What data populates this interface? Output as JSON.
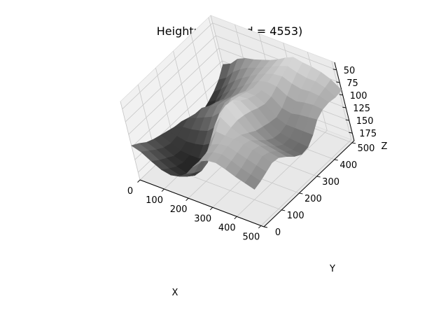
{
  "chart_data": {
    "type": "surface3d",
    "title": "Heightmap (seed = 4553)",
    "xlabel": "X",
    "ylabel": "Y",
    "zlabel": "Z",
    "xlim": [
      0,
      512
    ],
    "ylim": [
      0,
      512
    ],
    "zlim": [
      190,
      35
    ],
    "x_ticks": [
      "0",
      "100",
      "200",
      "300",
      "400",
      "500"
    ],
    "y_ticks": [
      "0",
      "100",
      "200",
      "300",
      "400",
      "500"
    ],
    "z_ticks": [
      "50",
      "75",
      "100",
      "125",
      "150",
      "175"
    ],
    "z_inverted": true,
    "grid": true,
    "colormap": "gray",
    "surface_grid": [
      [
        122,
        130,
        140,
        146,
        150,
        154,
        158,
        160,
        166,
        172,
        176,
        170,
        162,
        150,
        132
      ],
      [
        128,
        138,
        148,
        156,
        160,
        158,
        152,
        146,
        150,
        158,
        168,
        160,
        150,
        140,
        124
      ],
      [
        140,
        150,
        158,
        166,
        168,
        162,
        150,
        140,
        132,
        140,
        150,
        142,
        134,
        122,
        108
      ],
      [
        150,
        160,
        168,
        172,
        170,
        160,
        146,
        132,
        124,
        126,
        132,
        128,
        120,
        110,
        100
      ],
      [
        154,
        166,
        174,
        176,
        170,
        156,
        140,
        124,
        114,
        116,
        120,
        116,
        108,
        100,
        96
      ],
      [
        150,
        162,
        172,
        174,
        162,
        146,
        126,
        110,
        102,
        104,
        108,
        104,
        98,
        94,
        90
      ],
      [
        138,
        148,
        156,
        152,
        138,
        120,
        102,
        92,
        86,
        90,
        96,
        92,
        88,
        86,
        84
      ],
      [
        118,
        122,
        120,
        104,
        86,
        74,
        70,
        72,
        76,
        80,
        84,
        82,
        80,
        78,
        76
      ],
      [
        100,
        98,
        92,
        78,
        62,
        52,
        56,
        66,
        74,
        80,
        82,
        78,
        74,
        70,
        66
      ],
      [
        92,
        88,
        84,
        80,
        76,
        74,
        76,
        80,
        86,
        90,
        88,
        80,
        72,
        64,
        58
      ],
      [
        90,
        86,
        82,
        80,
        84,
        92,
        100,
        104,
        108,
        110,
        104,
        92,
        80,
        70,
        62
      ],
      [
        96,
        92,
        88,
        84,
        88,
        100,
        112,
        120,
        122,
        118,
        108,
        96,
        84,
        74,
        64
      ],
      [
        104,
        100,
        94,
        88,
        92,
        104,
        118,
        126,
        126,
        118,
        104,
        92,
        82,
        74,
        68
      ],
      [
        110,
        106,
        100,
        94,
        98,
        108,
        122,
        130,
        128,
        118,
        102,
        90,
        84,
        80,
        76
      ],
      [
        116,
        112,
        106,
        100,
        102,
        112,
        124,
        132,
        130,
        118,
        100,
        92,
        90,
        92,
        90
      ]
    ]
  }
}
